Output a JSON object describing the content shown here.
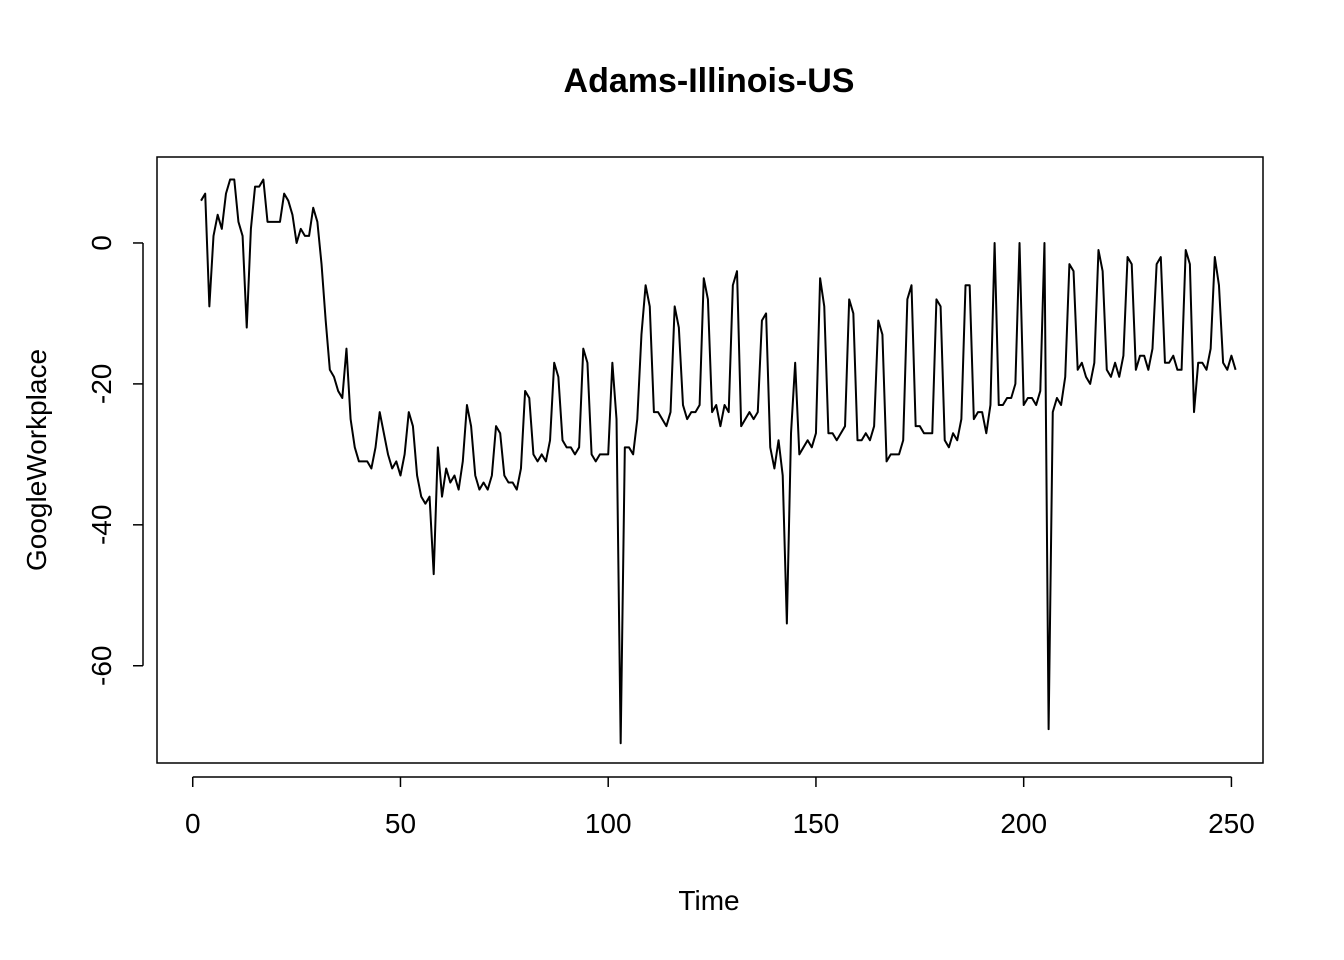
{
  "chart_data": {
    "type": "line",
    "title": "Adams-Illinois-US",
    "xlabel": "Time",
    "ylabel": "GoogleWorkplace",
    "xlim": [
      -8.6,
      257.6
    ],
    "ylim": [
      -73.8,
      12.2
    ],
    "xticks": [
      0,
      50,
      100,
      150,
      200,
      250
    ],
    "yticks": [
      -60,
      -40,
      -20,
      0
    ],
    "xtick_labels": [
      "0",
      "50",
      "100",
      "150",
      "200",
      "250"
    ],
    "ytick_labels": [
      "-60",
      "-40",
      "-20",
      "0"
    ],
    "grid": false,
    "series": [
      {
        "x_start": 2,
        "values": [
          6,
          7,
          -9,
          1,
          4,
          2,
          7,
          9,
          9,
          3,
          1,
          -12,
          2,
          8,
          8,
          9,
          3,
          3,
          3,
          3,
          7,
          6,
          4,
          0,
          2,
          1,
          1,
          5,
          3,
          -3,
          -11,
          -18,
          -19,
          -21,
          -22,
          -15,
          -25,
          -29,
          -31,
          -31,
          -31,
          -32,
          -29,
          -24,
          -27,
          -30,
          -32,
          -31,
          -33,
          -30,
          -24,
          -26,
          -33,
          -36,
          -37,
          -36,
          -47,
          -29,
          -36,
          -32,
          -34,
          -33,
          -35,
          -31,
          -23,
          -26,
          -33,
          -35,
          -34,
          -35,
          -33,
          -26,
          -27,
          -33,
          -34,
          -34,
          -35,
          -32,
          -21,
          -22,
          -30,
          -31,
          -30,
          -31,
          -28,
          -17,
          -19,
          -28,
          -29,
          -29,
          -30,
          -29,
          -15,
          -17,
          -30,
          -31,
          -30,
          -30,
          -30,
          -17,
          -25,
          -71,
          -29,
          -29,
          -30,
          -25,
          -13,
          -6,
          -9,
          -24,
          -24,
          -25,
          -26,
          -24,
          -9,
          -12,
          -23,
          -25,
          -24,
          -24,
          -23,
          -5,
          -8,
          -24,
          -23,
          -26,
          -23,
          -24,
          -6,
          -4,
          -26,
          -25,
          -24,
          -25,
          -24,
          -11,
          -10,
          -29,
          -32,
          -28,
          -33,
          -54,
          -27,
          -17,
          -30,
          -29,
          -28,
          -29,
          -27,
          -5,
          -9,
          -27,
          -27,
          -28,
          -27,
          -26,
          -8,
          -10,
          -28,
          -28,
          -27,
          -28,
          -26,
          -11,
          -13,
          -31,
          -30,
          -30,
          -30,
          -28,
          -8,
          -6,
          -26,
          -26,
          -27,
          -27,
          -27,
          -8,
          -9,
          -28,
          -29,
          -27,
          -28,
          -25,
          -6,
          -6,
          -25,
          -24,
          -24,
          -27,
          -23,
          0,
          -23,
          -23,
          -22,
          -22,
          -20,
          0,
          -23,
          -22,
          -22,
          -23,
          -21,
          0,
          -69,
          -24,
          -22,
          -23,
          -19,
          -3,
          -4,
          -18,
          -17,
          -19,
          -20,
          -17,
          -1,
          -4,
          -18,
          -19,
          -17,
          -19,
          -16,
          -2,
          -3,
          -18,
          -16,
          -16,
          -18,
          -15,
          -3,
          -2,
          -17,
          -17,
          -16,
          -18,
          -18,
          -1,
          -3,
          -24,
          -17,
          -17,
          -18,
          -15,
          -2,
          -6,
          -17,
          -18,
          -16,
          -18
        ]
      }
    ]
  }
}
